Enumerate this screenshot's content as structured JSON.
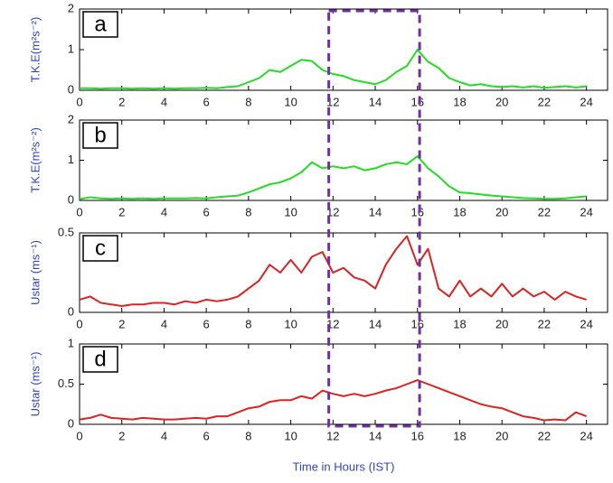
{
  "highlight": {
    "x": [
      11.8,
      16.1
    ],
    "color": "#7030a0"
  },
  "chart_data": [
    {
      "type": "line",
      "panel": "a",
      "ylabel": "T.K.E(m²s⁻²)",
      "x": [
        0,
        0.5,
        1,
        1.5,
        2,
        2.5,
        3,
        3.5,
        4,
        4.5,
        5,
        5.5,
        6,
        6.5,
        7,
        7.5,
        8,
        8.5,
        9,
        9.5,
        10,
        10.5,
        11,
        11.5,
        12,
        12.5,
        13,
        13.5,
        14,
        14.5,
        15,
        15.5,
        16,
        16.5,
        17,
        17.5,
        18,
        18.5,
        19,
        19.5,
        20,
        20.5,
        21,
        21.5,
        22,
        22.5,
        23,
        23.5,
        24
      ],
      "values": [
        0.05,
        0.05,
        0.04,
        0.05,
        0.05,
        0.04,
        0.05,
        0.04,
        0.05,
        0.04,
        0.05,
        0.05,
        0.06,
        0.05,
        0.08,
        0.1,
        0.2,
        0.3,
        0.5,
        0.45,
        0.6,
        0.75,
        0.72,
        0.5,
        0.4,
        0.35,
        0.25,
        0.2,
        0.15,
        0.25,
        0.45,
        0.6,
        1.0,
        0.7,
        0.55,
        0.3,
        0.2,
        0.12,
        0.15,
        0.1,
        0.08,
        0.1,
        0.07,
        0.1,
        0.06,
        0.08,
        0.1,
        0.07,
        0.1
      ],
      "color": "#22dd22",
      "xlim": [
        0,
        25
      ],
      "xticks": [
        0,
        2,
        4,
        6,
        8,
        10,
        12,
        14,
        16,
        18,
        20,
        22,
        24
      ],
      "ylim": [
        0,
        2
      ],
      "yticks": [
        0,
        1,
        2
      ]
    },
    {
      "type": "line",
      "panel": "b",
      "ylabel": "T.K.E(m²s⁻²)",
      "x": [
        0,
        0.5,
        1,
        1.5,
        2,
        2.5,
        3,
        3.5,
        4,
        4.5,
        5,
        5.5,
        6,
        6.5,
        7,
        7.5,
        8,
        8.5,
        9,
        9.5,
        10,
        10.5,
        11,
        11.5,
        12,
        12.5,
        13,
        13.5,
        14,
        14.5,
        15,
        15.5,
        16,
        16.5,
        17,
        17.5,
        18,
        18.5,
        19,
        19.5,
        20,
        20.5,
        21,
        21.5,
        22,
        22.5,
        23,
        23.5,
        24
      ],
      "values": [
        0.03,
        0.08,
        0.05,
        0.04,
        0.05,
        0.04,
        0.05,
        0.04,
        0.05,
        0.05,
        0.05,
        0.06,
        0.05,
        0.08,
        0.1,
        0.12,
        0.2,
        0.3,
        0.4,
        0.45,
        0.55,
        0.7,
        0.95,
        0.8,
        0.85,
        0.8,
        0.85,
        0.75,
        0.8,
        0.9,
        0.95,
        0.9,
        1.1,
        0.8,
        0.6,
        0.35,
        0.2,
        0.18,
        0.15,
        0.12,
        0.1,
        0.08,
        0.06,
        0.05,
        0.04,
        0.04,
        0.05,
        0.08,
        0.1
      ],
      "color": "#22dd22",
      "xlim": [
        0,
        25
      ],
      "xticks": [
        0,
        2,
        4,
        6,
        8,
        10,
        12,
        14,
        16,
        18,
        20,
        22,
        24
      ],
      "ylim": [
        0,
        2
      ],
      "yticks": [
        0,
        1,
        2
      ]
    },
    {
      "type": "line",
      "panel": "c",
      "ylabel": "Ustar (ms⁻¹)",
      "x": [
        0,
        0.5,
        1,
        1.5,
        2,
        2.5,
        3,
        3.5,
        4,
        4.5,
        5,
        5.5,
        6,
        6.5,
        7,
        7.5,
        8,
        8.5,
        9,
        9.5,
        10,
        10.5,
        11,
        11.5,
        12,
        12.5,
        13,
        13.5,
        14,
        14.5,
        15,
        15.5,
        16,
        16.5,
        17,
        17.5,
        18,
        18.5,
        19,
        19.5,
        20,
        20.5,
        21,
        21.5,
        22,
        22.5,
        23,
        23.5,
        24
      ],
      "values": [
        0.08,
        0.1,
        0.06,
        0.05,
        0.04,
        0.05,
        0.05,
        0.06,
        0.06,
        0.05,
        0.07,
        0.06,
        0.08,
        0.07,
        0.08,
        0.1,
        0.15,
        0.2,
        0.3,
        0.25,
        0.33,
        0.25,
        0.35,
        0.38,
        0.25,
        0.28,
        0.22,
        0.2,
        0.15,
        0.3,
        0.4,
        0.48,
        0.3,
        0.4,
        0.15,
        0.1,
        0.2,
        0.1,
        0.15,
        0.1,
        0.18,
        0.1,
        0.15,
        0.1,
        0.13,
        0.08,
        0.13,
        0.1,
        0.08
      ],
      "color": "#dd2222",
      "xlim": [
        0,
        25
      ],
      "xticks": [
        0,
        2,
        4,
        6,
        8,
        10,
        12,
        14,
        16,
        18,
        20,
        22,
        24
      ],
      "ylim": [
        0,
        0.5
      ],
      "yticks": [
        0,
        0.5
      ]
    },
    {
      "type": "line",
      "panel": "d",
      "ylabel": "Ustar (ms⁻¹)",
      "xlabel": "Time in Hours (IST)",
      "x": [
        0,
        0.5,
        1,
        1.5,
        2,
        2.5,
        3,
        3.5,
        4,
        4.5,
        5,
        5.5,
        6,
        6.5,
        7,
        7.5,
        8,
        8.5,
        9,
        9.5,
        10,
        10.5,
        11,
        11.5,
        12,
        12.5,
        13,
        13.5,
        14,
        14.5,
        15,
        15.5,
        16,
        16.5,
        17,
        17.5,
        18,
        18.5,
        19,
        19.5,
        20,
        20.5,
        21,
        21.5,
        22,
        22.5,
        23,
        23.5,
        24
      ],
      "values": [
        0.06,
        0.08,
        0.12,
        0.08,
        0.07,
        0.06,
        0.08,
        0.07,
        0.06,
        0.06,
        0.07,
        0.08,
        0.07,
        0.1,
        0.1,
        0.15,
        0.2,
        0.22,
        0.28,
        0.3,
        0.3,
        0.35,
        0.32,
        0.42,
        0.38,
        0.35,
        0.38,
        0.35,
        0.38,
        0.42,
        0.45,
        0.5,
        0.55,
        0.5,
        0.45,
        0.4,
        0.35,
        0.3,
        0.25,
        0.22,
        0.2,
        0.15,
        0.1,
        0.08,
        0.05,
        0.06,
        0.05,
        0.15,
        0.1
      ],
      "color": "#dd2222",
      "xlim": [
        0,
        25
      ],
      "xticks": [
        0,
        2,
        4,
        6,
        8,
        10,
        12,
        14,
        16,
        18,
        20,
        22,
        24
      ],
      "ylim": [
        0,
        1
      ],
      "yticks": [
        0,
        0.5,
        1
      ]
    }
  ]
}
